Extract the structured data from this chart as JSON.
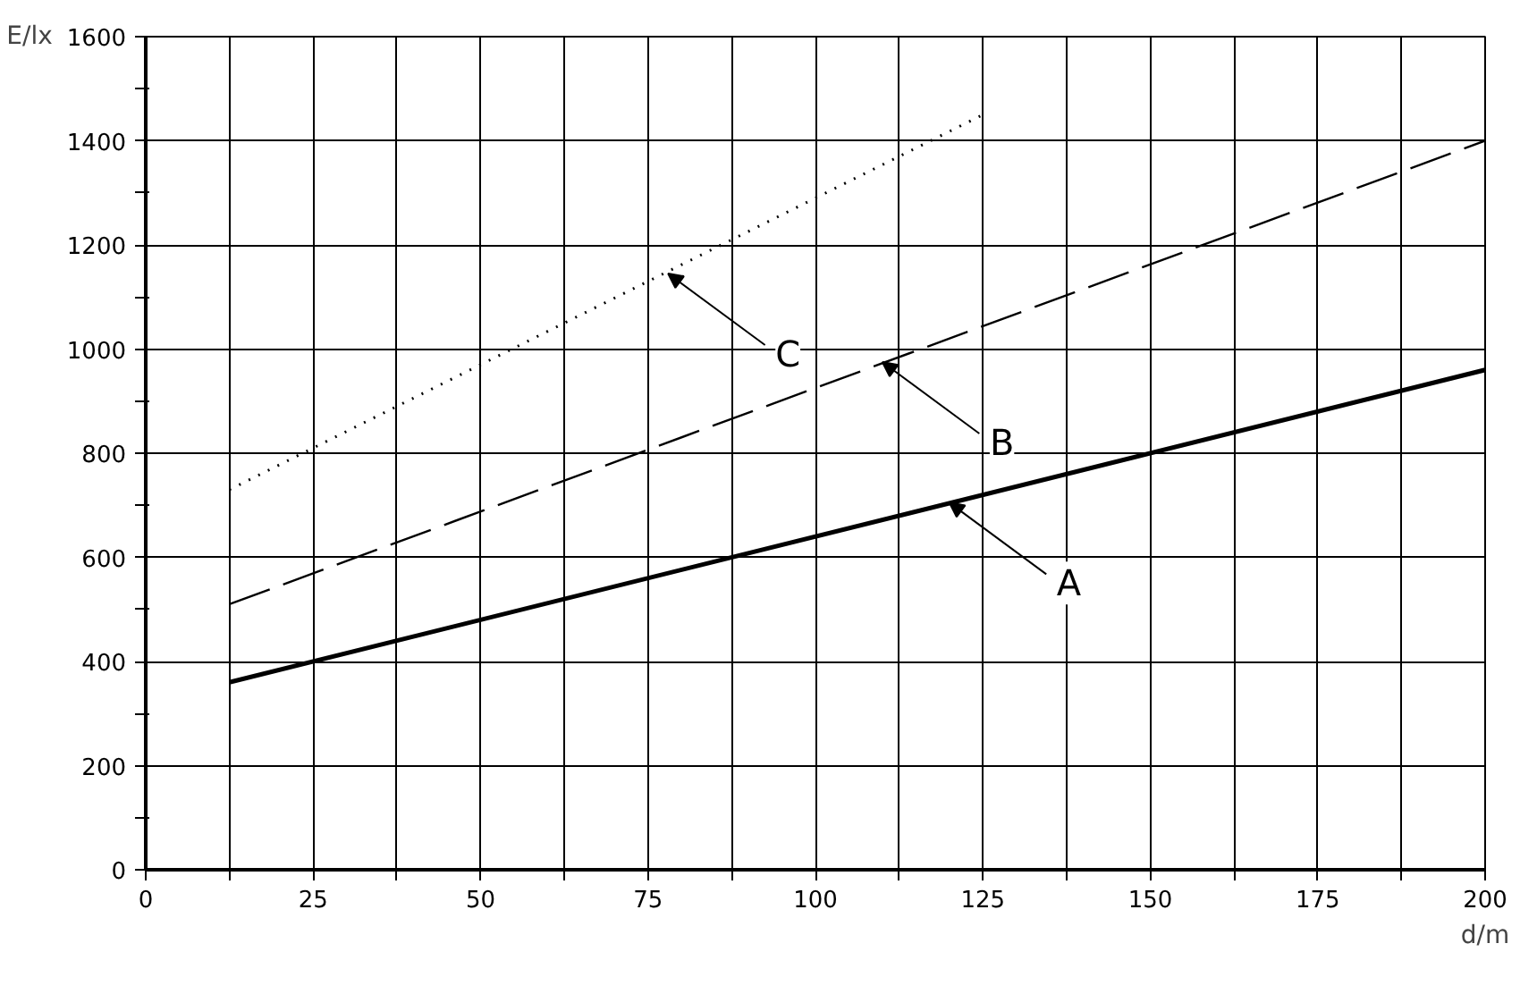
{
  "chart_data": {
    "type": "line",
    "xlabel": "d/m",
    "ylabel": "E/lx",
    "xlim": [
      0,
      200
    ],
    "ylim": [
      0,
      1600
    ],
    "xticks": [
      0,
      {
        "value": 12.5,
        "label": null
      },
      25,
      {
        "value": 37.5,
        "label": null
      },
      50,
      {
        "value": 62.5,
        "label": null
      },
      75,
      {
        "value": 87.5,
        "label": null
      },
      100,
      {
        "value": 112.5,
        "label": null
      },
      125,
      {
        "value": 137.5,
        "label": null
      },
      150,
      {
        "value": 162.5,
        "label": null
      },
      175,
      {
        "value": 187.5,
        "label": null
      },
      200
    ],
    "yticks": [
      0,
      {
        "value": 100,
        "label": null
      },
      200,
      {
        "value": 300,
        "label": null
      },
      400,
      {
        "value": 500,
        "label": null
      },
      600,
      {
        "value": 700,
        "label": null
      },
      800,
      {
        "value": 900,
        "label": null
      },
      1000,
      {
        "value": 1100,
        "label": null
      },
      1200,
      {
        "value": 1300,
        "label": null
      },
      1400,
      {
        "value": 1500,
        "label": null
      },
      1600
    ],
    "grid": true,
    "marker": "none",
    "series": [
      {
        "color": "#000000",
        "line_style": "solid",
        "x": [
          12.5,
          200
        ],
        "values": [
          360,
          960
        ]
      },
      {
        "color": "#000000",
        "line_style": "dashed",
        "x": [
          12.5,
          200
        ],
        "values": [
          510,
          1400
        ]
      },
      {
        "color": "#000000",
        "line_style": "dotted",
        "x": [
          12.5,
          125
        ],
        "values": [
          730,
          1450
        ]
      }
    ],
    "annotations": [
      {
        "text": "A",
        "x": 120,
        "y": 705
      },
      {
        "text": "B",
        "x": 110,
        "y": 975
      },
      {
        "text": "C",
        "x": 78,
        "y": 1145
      }
    ]
  }
}
